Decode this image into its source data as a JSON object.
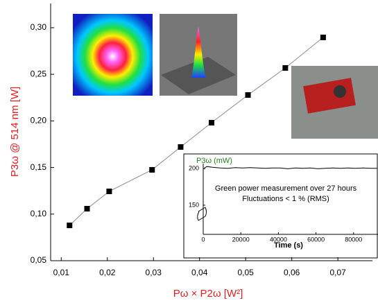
{
  "chart_data": [
    {
      "type": "line",
      "marker": "square",
      "color": "#8a8a8a",
      "marker_color": "#000000",
      "x": [
        0.0118,
        0.0156,
        0.0204,
        0.0297,
        0.0359,
        0.0426,
        0.0505,
        0.0586,
        0.0668
      ],
      "values": [
        0.0879,
        0.1058,
        0.1244,
        0.1475,
        0.172,
        0.1981,
        0.2278,
        0.2568,
        0.2896
      ],
      "xlim": [
        0.0077,
        0.0775
      ],
      "ylim": [
        0.05,
        0.326
      ],
      "xticks": [
        {
          "value": 0.01,
          "label": "0,01"
        },
        {
          "value": 0.02,
          "label": "0,02"
        },
        {
          "value": 0.03,
          "label": "0,03"
        },
        {
          "value": 0.04,
          "label": "0,04"
        },
        {
          "value": 0.05,
          "label": "0,05"
        },
        {
          "value": 0.06,
          "label": "0,06"
        },
        {
          "value": 0.07,
          "label": "0,07"
        }
      ],
      "yticks": [
        {
          "value": 0.05,
          "label": "0,05"
        },
        {
          "value": 0.1,
          "label": "0,10"
        },
        {
          "value": 0.15,
          "label": "0,15"
        },
        {
          "value": 0.2,
          "label": "0,20"
        },
        {
          "value": 0.25,
          "label": "0,25"
        },
        {
          "value": 0.3,
          "label": "0,30"
        }
      ],
      "x_label": "Pω × P2ω [W²]",
      "y_label": "P3ω @ 514 nm [W]"
    },
    {
      "type": "line",
      "color": "#000000",
      "x": [
        500,
        2000,
        5000,
        9000,
        13000,
        17000,
        21000,
        25000,
        29000,
        33000,
        37000,
        41000,
        45000,
        49000,
        53000,
        57000,
        61000,
        65000,
        69000,
        73000,
        77000,
        81000,
        85000,
        89000,
        92500
      ],
      "values": [
        201,
        203,
        202,
        201,
        200.5,
        201.5,
        201,
        201.5,
        201,
        200.5,
        201,
        201,
        200,
        201,
        200.5,
        201,
        200,
        200.5,
        201,
        200.5,
        201,
        200.5,
        201,
        200.5,
        200.5
      ],
      "xlim": [
        0,
        93000
      ],
      "ylim": [
        110,
        207
      ],
      "xticks": [
        0,
        20000,
        40000,
        60000,
        80000
      ],
      "yticks": [
        150,
        200
      ],
      "x_label": "Time (s)",
      "y_label": "P3ω (mW)",
      "annotations": [
        "Green power measurement over 27 hours",
        "Fluctuations < 1 % (RMS)"
      ]
    }
  ]
}
